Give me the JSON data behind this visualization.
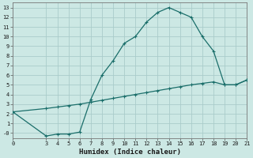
{
  "xlabel": "Humidex (Indice chaleur)",
  "bg_color": "#cce8e4",
  "grid_color": "#aaccca",
  "line_color": "#1a6e6a",
  "curve1_x": [
    0,
    3,
    4,
    5,
    6,
    7,
    8,
    9,
    10,
    11,
    12,
    13,
    14,
    15,
    16,
    17,
    18,
    19,
    20,
    21
  ],
  "curve1_y": [
    2.2,
    -0.3,
    -0.1,
    -0.1,
    0.1,
    3.5,
    6.0,
    7.5,
    9.3,
    10.0,
    11.5,
    12.5,
    13.0,
    12.5,
    12.0,
    10.0,
    8.5,
    5.0,
    5.0,
    5.5
  ],
  "curve2_x": [
    0,
    3,
    4,
    5,
    6,
    7,
    8,
    9,
    10,
    11,
    12,
    13,
    14,
    15,
    16,
    17,
    18,
    19,
    20,
    21
  ],
  "curve2_y": [
    2.2,
    2.55,
    2.7,
    2.85,
    3.0,
    3.2,
    3.4,
    3.6,
    3.8,
    4.0,
    4.2,
    4.4,
    4.6,
    4.8,
    5.0,
    5.15,
    5.3,
    5.0,
    5.0,
    5.5
  ],
  "xlim": [
    0,
    21
  ],
  "ylim": [
    -0.5,
    13.5
  ],
  "xticks": [
    0,
    3,
    4,
    5,
    6,
    7,
    8,
    9,
    10,
    11,
    12,
    13,
    14,
    15,
    16,
    17,
    18,
    19,
    20,
    21
  ],
  "yticks": [
    0,
    1,
    2,
    3,
    4,
    5,
    6,
    7,
    8,
    9,
    10,
    11,
    12,
    13
  ],
  "ytick_labels": [
    "-0",
    "1",
    "2",
    "3",
    "4",
    "5",
    "6",
    "7",
    "8",
    "9",
    "10",
    "11",
    "12",
    "13"
  ]
}
